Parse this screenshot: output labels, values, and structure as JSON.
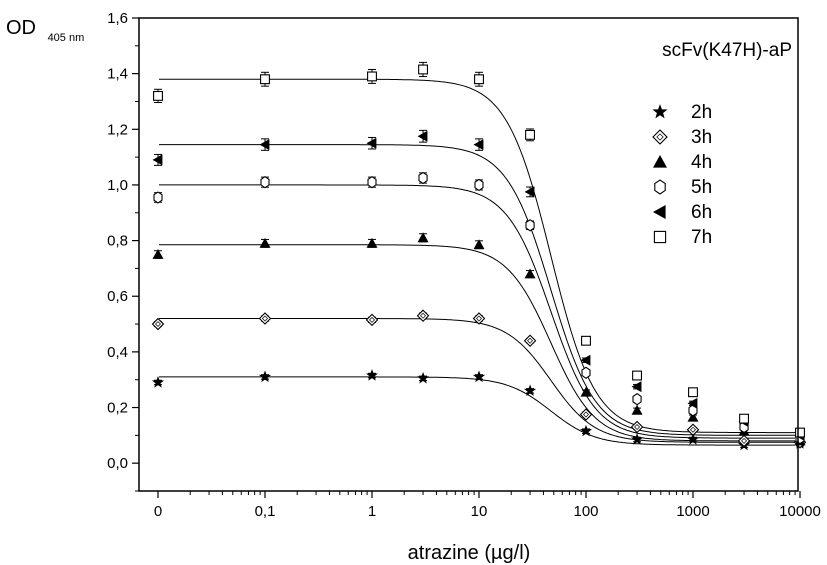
{
  "chart_data": {
    "type": "scatter",
    "title": "scFv(K47H)-aP",
    "xlabel": "atrazine (µg/l)",
    "ylabel": "OD",
    "ylabel_sub": "405 nm",
    "x_scale": "log with zero",
    "x_ticks": [
      "0",
      "0,1",
      "1",
      "10",
      "100",
      "1000",
      "10000"
    ],
    "y_ticks": [
      "0,0",
      "0,2",
      "0,4",
      "0,6",
      "0,8",
      "1,0",
      "1,2",
      "1,4",
      "1,6"
    ],
    "ylim": [
      -0.1,
      1.6
    ],
    "grid": false,
    "legend_position": "right",
    "x": [
      "0",
      "0,1",
      "1",
      "3",
      "10",
      "30",
      "100",
      "300",
      "1000",
      "3000",
      "10000"
    ],
    "series": [
      {
        "name": "2h",
        "marker": "star",
        "values": [
          0.29,
          0.31,
          0.315,
          0.305,
          0.31,
          0.26,
          0.115,
          0.085,
          0.085,
          0.065,
          0.07
        ]
      },
      {
        "name": "3h",
        "marker": "diamond-open",
        "values": [
          0.5,
          0.52,
          0.515,
          0.53,
          0.52,
          0.44,
          0.175,
          0.13,
          0.12,
          0.08,
          0.075
        ]
      },
      {
        "name": "4h",
        "marker": "triangle-up",
        "values": [
          0.75,
          0.79,
          0.79,
          0.81,
          0.785,
          0.68,
          0.255,
          0.19,
          0.165,
          0.115,
          0.08
        ]
      },
      {
        "name": "5h",
        "marker": "hexagon-open",
        "values": [
          0.955,
          1.01,
          1.01,
          1.025,
          1.0,
          0.855,
          0.325,
          0.23,
          0.19,
          0.13,
          0.09
        ]
      },
      {
        "name": "6h",
        "marker": "triangle-left",
        "values": [
          1.09,
          1.145,
          1.15,
          1.175,
          1.145,
          0.975,
          0.37,
          0.275,
          0.215,
          0.15,
          0.1
        ]
      },
      {
        "name": "7h",
        "marker": "square-open",
        "values": [
          1.32,
          1.38,
          1.39,
          1.415,
          1.38,
          1.18,
          0.44,
          0.315,
          0.255,
          0.16,
          0.11
        ]
      }
    ]
  }
}
